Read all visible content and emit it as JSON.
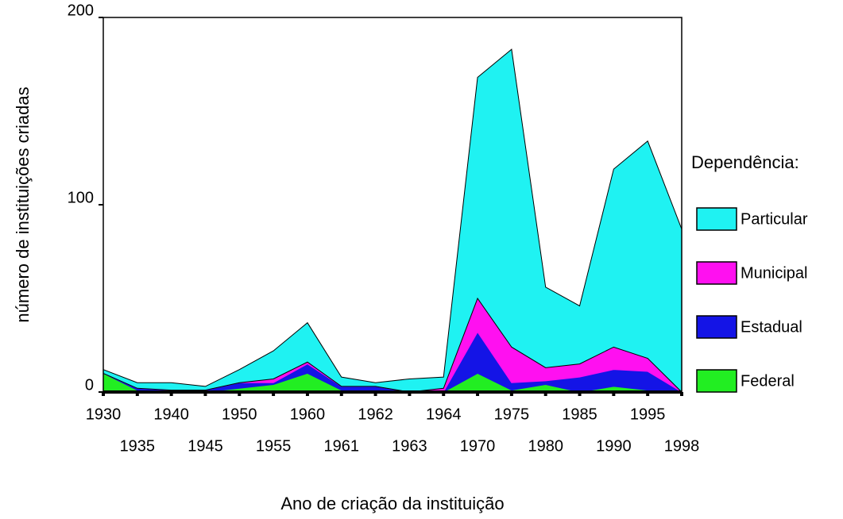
{
  "chart_data": {
    "type": "stacked_area",
    "x_label": "Ano de criação da instituição",
    "y_label": "número de instituições criadas",
    "legend_title": "Dependência:",
    "legend": "right",
    "categories": [
      "1930",
      "1935",
      "1940",
      "1945",
      "1950",
      "1955",
      "1960",
      "1961",
      "1962",
      "1963",
      "1964",
      "1970",
      "1975",
      "1980",
      "1985",
      "1990",
      "1995",
      "1998"
    ],
    "ylim": [
      0,
      200
    ],
    "yticks": [
      0,
      100,
      200
    ],
    "series": [
      {
        "name": "Particular",
        "color": "#1ff2f2",
        "values": [
          2,
          3,
          4,
          2,
          7,
          15,
          21,
          5,
          2,
          7,
          6,
          118,
          159,
          43,
          31,
          95,
          116,
          87
        ]
      },
      {
        "name": "Municipal",
        "color": "#ff10f0",
        "values": [
          0,
          0,
          0,
          0,
          0,
          2,
          1,
          0,
          0,
          0,
          2,
          18,
          19,
          7,
          7,
          12,
          7,
          0
        ]
      },
      {
        "name": "Estadual",
        "color": "#1414e6",
        "values": [
          0,
          1,
          1,
          1,
          3,
          1,
          5,
          2,
          2,
          0,
          0,
          22,
          4,
          2,
          8,
          9,
          10,
          0
        ]
      },
      {
        "name": "Federal",
        "color": "#22ee22",
        "values": [
          10,
          1,
          0,
          0,
          2,
          4,
          10,
          1,
          1,
          0,
          0,
          10,
          1,
          4,
          0,
          3,
          1,
          0
        ]
      }
    ]
  }
}
